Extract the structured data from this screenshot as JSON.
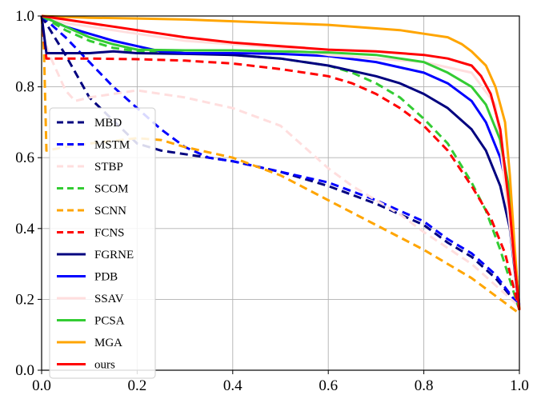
{
  "chart_data": {
    "type": "line",
    "xlim": [
      0.0,
      1.0
    ],
    "ylim": [
      0.0,
      1.0
    ],
    "x_ticks": [
      0.0,
      0.2,
      0.4,
      0.6,
      0.8,
      1.0
    ],
    "y_ticks": [
      0.0,
      0.2,
      0.4,
      0.6,
      0.8,
      1.0
    ],
    "x_tick_labels": [
      "0.0",
      "0.2",
      "0.4",
      "0.6",
      "0.8",
      "1.0"
    ],
    "y_tick_labels": [
      "0.0",
      "0.2",
      "0.4",
      "0.6",
      "0.8",
      "1.0"
    ],
    "grid": true,
    "legend_position": "left",
    "series": [
      {
        "name": "MBD",
        "color": "#00007f",
        "dash": "dashed",
        "x": [
          0.0,
          0.05,
          0.1,
          0.2,
          0.25,
          0.3,
          0.35,
          0.4,
          0.5,
          0.6,
          0.7,
          0.8,
          0.85,
          0.9,
          0.95,
          1.0
        ],
        "y": [
          1.0,
          0.89,
          0.77,
          0.64,
          0.62,
          0.61,
          0.6,
          0.59,
          0.56,
          0.52,
          0.47,
          0.41,
          0.36,
          0.32,
          0.26,
          0.18
        ]
      },
      {
        "name": "MSTM",
        "color": "#0000ff",
        "dash": "dashed",
        "x": [
          0.0,
          0.05,
          0.1,
          0.15,
          0.2,
          0.25,
          0.3,
          0.35,
          0.4,
          0.5,
          0.6,
          0.7,
          0.8,
          0.85,
          0.9,
          0.95,
          1.0
        ],
        "y": [
          1.0,
          0.94,
          0.87,
          0.8,
          0.74,
          0.68,
          0.63,
          0.6,
          0.59,
          0.56,
          0.53,
          0.48,
          0.42,
          0.37,
          0.33,
          0.27,
          0.18
        ]
      },
      {
        "name": "STBP",
        "color": "#ffdede",
        "dash": "dashed",
        "x": [
          0.0,
          0.02,
          0.05,
          0.07,
          0.1,
          0.15,
          0.2,
          0.3,
          0.4,
          0.5,
          0.55,
          0.6,
          0.65,
          0.7,
          0.75,
          0.8,
          0.9,
          1.0
        ],
        "y": [
          0.95,
          0.88,
          0.79,
          0.76,
          0.77,
          0.78,
          0.79,
          0.77,
          0.74,
          0.69,
          0.63,
          0.57,
          0.52,
          0.48,
          0.44,
          0.39,
          0.3,
          0.18
        ]
      },
      {
        "name": "SCOM",
        "color": "#33cc33",
        "dash": "dashed",
        "x": [
          0.0,
          0.05,
          0.1,
          0.15,
          0.2,
          0.3,
          0.4,
          0.5,
          0.6,
          0.65,
          0.7,
          0.75,
          0.8,
          0.85,
          0.9,
          0.93,
          0.96,
          1.0
        ],
        "y": [
          1.0,
          0.96,
          0.93,
          0.91,
          0.9,
          0.895,
          0.89,
          0.88,
          0.86,
          0.84,
          0.81,
          0.77,
          0.71,
          0.64,
          0.53,
          0.45,
          0.34,
          0.17
        ]
      },
      {
        "name": "SCNN",
        "color": "#ffa500",
        "dash": "dashed",
        "x": [
          0.0,
          0.005,
          0.01,
          0.05,
          0.1,
          0.2,
          0.25,
          0.3,
          0.4,
          0.5,
          0.6,
          0.7,
          0.8,
          0.9,
          1.0
        ],
        "y": [
          1.0,
          0.9,
          0.62,
          0.63,
          0.64,
          0.655,
          0.65,
          0.63,
          0.6,
          0.55,
          0.48,
          0.41,
          0.34,
          0.26,
          0.16
        ]
      },
      {
        "name": "FCNS",
        "color": "#ff0000",
        "dash": "dashed",
        "x": [
          0.0,
          0.01,
          0.05,
          0.1,
          0.2,
          0.3,
          0.4,
          0.5,
          0.6,
          0.65,
          0.7,
          0.75,
          0.8,
          0.85,
          0.9,
          0.94,
          0.97,
          1.0
        ],
        "y": [
          1.0,
          0.88,
          0.88,
          0.88,
          0.878,
          0.874,
          0.866,
          0.85,
          0.83,
          0.81,
          0.78,
          0.74,
          0.69,
          0.62,
          0.52,
          0.43,
          0.33,
          0.17
        ]
      },
      {
        "name": "FGRNE",
        "color": "#00007f",
        "dash": "solid",
        "x": [
          0.0,
          0.01,
          0.05,
          0.1,
          0.15,
          0.2,
          0.3,
          0.4,
          0.5,
          0.6,
          0.7,
          0.75,
          0.8,
          0.85,
          0.9,
          0.93,
          0.96,
          0.98,
          1.0
        ],
        "y": [
          1.0,
          0.895,
          0.895,
          0.895,
          0.9,
          0.895,
          0.893,
          0.89,
          0.88,
          0.86,
          0.83,
          0.81,
          0.78,
          0.74,
          0.68,
          0.62,
          0.52,
          0.4,
          0.17
        ]
      },
      {
        "name": "PDB",
        "color": "#0000ff",
        "dash": "solid",
        "x": [
          0.0,
          0.05,
          0.1,
          0.15,
          0.2,
          0.25,
          0.3,
          0.4,
          0.5,
          0.6,
          0.7,
          0.8,
          0.85,
          0.9,
          0.93,
          0.96,
          0.98,
          1.0
        ],
        "y": [
          1.0,
          0.97,
          0.95,
          0.93,
          0.915,
          0.9,
          0.895,
          0.895,
          0.893,
          0.887,
          0.87,
          0.84,
          0.81,
          0.76,
          0.7,
          0.6,
          0.48,
          0.18
        ]
      },
      {
        "name": "SSAV",
        "color": "#ffdede",
        "dash": "solid",
        "x": [
          0.0,
          0.05,
          0.1,
          0.2,
          0.3,
          0.4,
          0.5,
          0.55,
          0.6,
          0.7,
          0.8,
          0.9,
          0.95,
          1.0
        ],
        "y": [
          1.0,
          0.98,
          0.97,
          0.95,
          0.93,
          0.92,
          0.91,
          0.9,
          0.89,
          0.88,
          0.87,
          0.84,
          0.75,
          0.18
        ]
      },
      {
        "name": "PCSA",
        "color": "#33cc33",
        "dash": "solid",
        "x": [
          0.0,
          0.05,
          0.1,
          0.15,
          0.2,
          0.3,
          0.4,
          0.5,
          0.6,
          0.7,
          0.75,
          0.8,
          0.85,
          0.9,
          0.93,
          0.96,
          0.98,
          1.0
        ],
        "y": [
          1.0,
          0.97,
          0.94,
          0.92,
          0.905,
          0.903,
          0.903,
          0.9,
          0.897,
          0.89,
          0.88,
          0.87,
          0.84,
          0.8,
          0.75,
          0.65,
          0.5,
          0.17
        ]
      },
      {
        "name": "MGA",
        "color": "#ffa500",
        "dash": "solid",
        "x": [
          0.0,
          0.1,
          0.2,
          0.3,
          0.4,
          0.5,
          0.6,
          0.7,
          0.75,
          0.8,
          0.85,
          0.88,
          0.9,
          0.93,
          0.95,
          0.97,
          0.98,
          0.99,
          1.0
        ],
        "y": [
          1.0,
          0.995,
          0.993,
          0.99,
          0.985,
          0.98,
          0.975,
          0.965,
          0.96,
          0.95,
          0.94,
          0.92,
          0.9,
          0.86,
          0.8,
          0.7,
          0.55,
          0.35,
          0.17
        ]
      },
      {
        "name": "ours",
        "color": "#ff0000",
        "dash": "solid",
        "x": [
          0.0,
          0.1,
          0.2,
          0.3,
          0.4,
          0.5,
          0.55,
          0.6,
          0.7,
          0.8,
          0.85,
          0.9,
          0.92,
          0.94,
          0.96,
          0.98,
          0.99,
          1.0
        ],
        "y": [
          1.0,
          0.98,
          0.96,
          0.94,
          0.925,
          0.915,
          0.91,
          0.905,
          0.9,
          0.89,
          0.88,
          0.86,
          0.83,
          0.78,
          0.68,
          0.45,
          0.3,
          0.17
        ]
      }
    ]
  }
}
